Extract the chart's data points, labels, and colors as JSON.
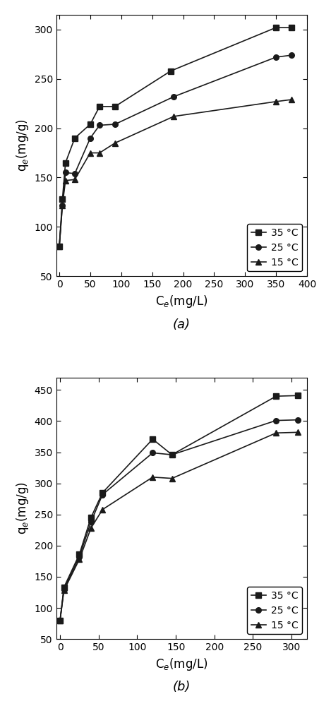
{
  "plot_a": {
    "series": [
      {
        "label": "35 °C",
        "marker": "s",
        "x": [
          0,
          5,
          10,
          25,
          50,
          65,
          90,
          180,
          350,
          375
        ],
        "y": [
          80,
          128,
          165,
          190,
          204,
          222,
          222,
          258,
          302,
          302
        ]
      },
      {
        "label": "25 °C",
        "marker": "o",
        "x": [
          0,
          5,
          10,
          25,
          50,
          65,
          90,
          185,
          350,
          375
        ],
        "y": [
          80,
          122,
          155,
          154,
          190,
          203,
          204,
          232,
          272,
          274
        ]
      },
      {
        "label": "15 °C",
        "marker": "^",
        "x": [
          0,
          5,
          10,
          25,
          50,
          65,
          90,
          185,
          350,
          375
        ],
        "y": [
          80,
          122,
          147,
          148,
          175,
          175,
          185,
          212,
          227,
          229
        ]
      }
    ],
    "xlabel": "C$_e$(mg/L)",
    "ylabel": "q$_e$(mg/g)",
    "xlim": [
      -5,
      400
    ],
    "ylim": [
      50,
      315
    ],
    "xticks": [
      0,
      50,
      100,
      150,
      200,
      250,
      300,
      350,
      400
    ],
    "yticks": [
      50,
      100,
      150,
      200,
      250,
      300
    ],
    "label": "(a)"
  },
  "plot_b": {
    "series": [
      {
        "label": "35 °C",
        "marker": "s",
        "x": [
          0,
          5,
          25,
          40,
          55,
          120,
          145,
          280,
          308
        ],
        "y": [
          80,
          133,
          186,
          245,
          285,
          371,
          346,
          440,
          441
        ]
      },
      {
        "label": "25 °C",
        "marker": "o",
        "x": [
          0,
          5,
          25,
          40,
          55,
          120,
          145,
          280,
          308
        ],
        "y": [
          80,
          130,
          182,
          238,
          282,
          349,
          346,
          401,
          402
        ]
      },
      {
        "label": "15 °C",
        "marker": "^",
        "x": [
          0,
          5,
          25,
          40,
          55,
          120,
          145,
          280,
          308
        ],
        "y": [
          80,
          128,
          178,
          228,
          258,
          310,
          308,
          381,
          382
        ]
      }
    ],
    "xlabel": "C$_e$(mg/L)",
    "ylabel": "q$_e$(mg/g)",
    "xlim": [
      -5,
      320
    ],
    "ylim": [
      50,
      470
    ],
    "xticks": [
      0,
      50,
      100,
      150,
      200,
      250,
      300
    ],
    "yticks": [
      50,
      100,
      150,
      200,
      250,
      300,
      350,
      400,
      450
    ],
    "label": "(b)"
  },
  "line_color": "#1a1a1a",
  "marker_size": 5.5,
  "line_width": 1.2,
  "legend_fontsize": 10,
  "axis_fontsize": 12,
  "tick_fontsize": 10,
  "label_fontsize": 13
}
